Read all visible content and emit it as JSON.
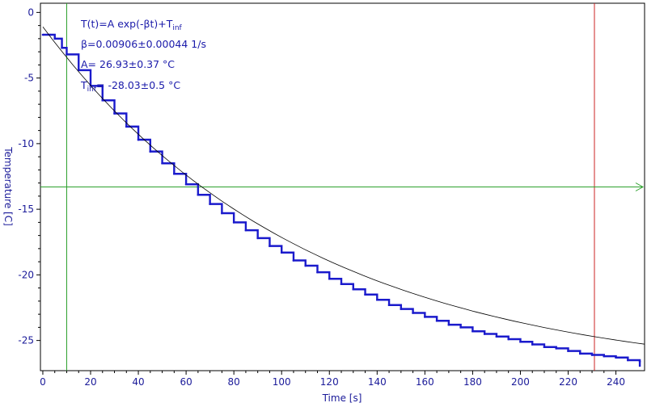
{
  "chart_data": {
    "type": "line",
    "xlabel": "Time [s]",
    "ylabel": "Temperature [C]",
    "xlim": [
      -1,
      252
    ],
    "ylim": [
      -27.3,
      0.7
    ],
    "x_ticks": [
      0,
      20,
      40,
      60,
      80,
      100,
      120,
      140,
      160,
      180,
      200,
      220,
      240
    ],
    "y_ticks": [
      0,
      -5,
      -10,
      -15,
      -20,
      -25
    ],
    "grid": false,
    "fit": {
      "formula": "T(t)=A exp(-βt)+T",
      "formula_sub": "inf",
      "beta": "β=0.00906±0.00044 1/s",
      "A": "A= 26.93±0.37 °C",
      "tinf_prefix": "T",
      "tinf_sub": "inf",
      "tinf_value": "= -28.03±0.5 °C",
      "A_value": 26.93,
      "beta_value": 0.00906,
      "tinf_numeric": -28.03,
      "curve_x_range": [
        0,
        252
      ]
    },
    "series": [
      {
        "x": [
          0,
          3,
          5,
          8,
          10,
          15,
          20,
          25,
          30,
          35,
          40,
          45,
          50,
          55,
          60,
          65,
          70,
          75,
          80,
          85,
          90,
          95,
          100,
          105,
          110,
          115,
          120,
          125,
          130,
          135,
          140,
          145,
          150,
          155,
          160,
          165,
          170,
          175,
          180,
          185,
          190,
          195,
          200,
          205,
          210,
          215,
          220,
          225,
          230,
          235,
          240,
          245,
          250
        ],
        "values": [
          -1.7,
          -1.7,
          -2.0,
          -2.7,
          -3.2,
          -4.4,
          -5.6,
          -6.7,
          -7.7,
          -8.7,
          -9.7,
          -10.6,
          -11.5,
          -12.3,
          -13.1,
          -13.9,
          -14.6,
          -15.3,
          -16.0,
          -16.6,
          -17.2,
          -17.8,
          -18.3,
          -18.9,
          -19.3,
          -19.8,
          -20.3,
          -20.7,
          -21.1,
          -21.5,
          -21.9,
          -22.3,
          -22.6,
          -22.9,
          -23.2,
          -23.5,
          -23.8,
          -24.0,
          -24.3,
          -24.5,
          -24.7,
          -24.9,
          -25.1,
          -25.3,
          -25.5,
          -25.6,
          -25.8,
          -26.0,
          -26.1,
          -26.2,
          -26.3,
          -26.5,
          -26.6
        ],
        "end_drop_to": -27.0
      }
    ],
    "cursors": {
      "vertical_green_x": 10,
      "vertical_red_x": 231,
      "horizontal_green_y": -13.3
    },
    "colors": {
      "data": "#1a1acc",
      "fit": "#000000",
      "cursor_green": "#2ca02c",
      "cursor_red": "#cc2222",
      "text": "#1a1a99"
    }
  }
}
